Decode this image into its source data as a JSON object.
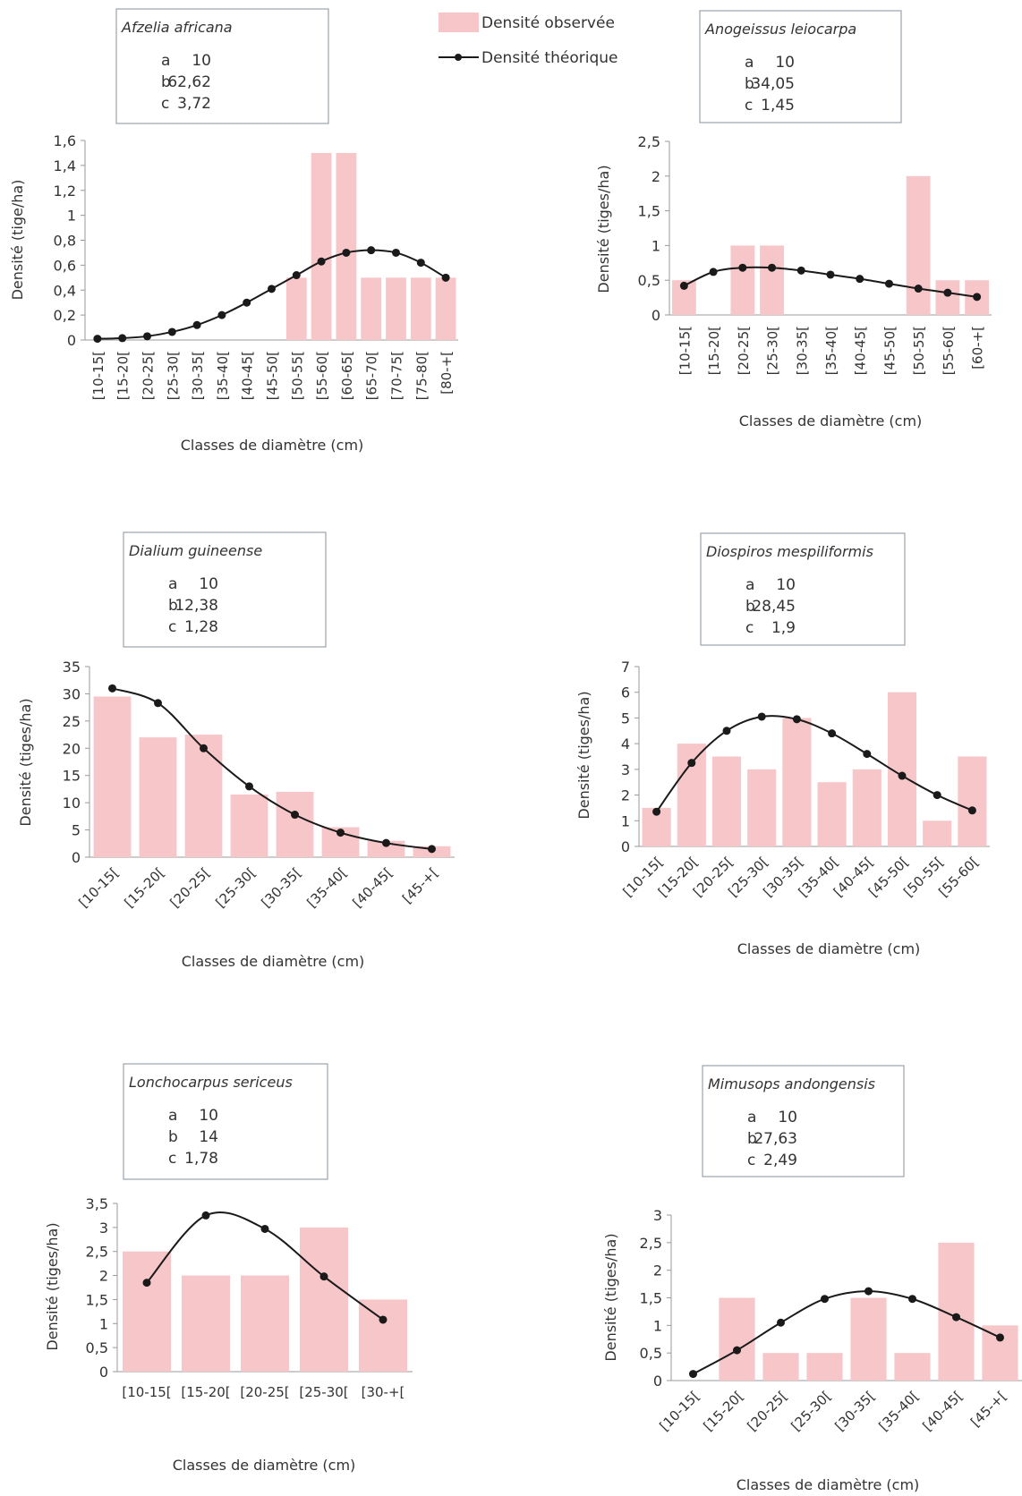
{
  "legend": {
    "observed_label": "Densité observée",
    "theoretical_label": "Densité théorique"
  },
  "colors": {
    "bar": "#f7c6c9",
    "line": "#1a1a1a",
    "axis": "#999999",
    "box_border": "#9aa4ab"
  },
  "chart_data": [
    {
      "type": "bar",
      "title": "Afzelia africana",
      "params": [
        [
          "a",
          "10"
        ],
        [
          "b",
          "62,62"
        ],
        [
          "c",
          "3,72"
        ]
      ],
      "categories": [
        "[10-15[",
        "[15-20[",
        "[20-25[",
        "[25-30[",
        "[30-35[",
        "[35-40[",
        "[40-45[",
        "[45-50[",
        "[50-55[",
        "[55-60[",
        "[60-65[",
        "[65-70[",
        "[70-75[",
        "[75-80[",
        "[80-+["
      ],
      "series": [
        {
          "name": "Densité observée",
          "kind": "bar",
          "values": [
            0,
            0,
            0,
            0,
            0,
            0,
            0,
            0,
            0.5,
            1.5,
            1.5,
            0.5,
            0.5,
            0.5,
            0.5
          ]
        },
        {
          "name": "Densité théorique",
          "kind": "line",
          "values": [
            0.01,
            0.015,
            0.03,
            0.065,
            0.12,
            0.2,
            0.3,
            0.41,
            0.52,
            0.63,
            0.7,
            0.72,
            0.7,
            0.62,
            0.5
          ]
        }
      ],
      "ylim": [
        0,
        1.6
      ],
      "yticks": [
        "0",
        "0,2",
        "0,4",
        "0,6",
        "0,8",
        "1",
        "1,2",
        "1,4",
        "1,6"
      ],
      "ylabel": "Densité (tige/ha)",
      "xlabel": "Classes de diamètre (cm)",
      "label_style": "vertical"
    },
    {
      "type": "bar",
      "title": "Anogeissus leiocarpa",
      "params": [
        [
          "a",
          "10"
        ],
        [
          "b",
          "34,05"
        ],
        [
          "c",
          "1,45"
        ]
      ],
      "categories": [
        "[10-15[",
        "[15-20[",
        "[20-25[",
        "[25-30[",
        "[30-35[",
        "[35-40[",
        "[40-45[",
        "[45-50[",
        "[50-55[",
        "[55-60[",
        "[60-+["
      ],
      "series": [
        {
          "name": "Densité observée",
          "kind": "bar",
          "values": [
            0.5,
            0,
            1,
            1,
            0,
            0,
            0,
            0,
            2,
            0.5,
            0.5
          ]
        },
        {
          "name": "Densité théorique",
          "kind": "line",
          "values": [
            0.42,
            0.62,
            0.68,
            0.68,
            0.64,
            0.58,
            0.52,
            0.45,
            0.38,
            0.32,
            0.26
          ]
        }
      ],
      "ylim": [
        0,
        2.5
      ],
      "yticks": [
        "0",
        "0,5",
        "1",
        "1,5",
        "2",
        "2,5"
      ],
      "ylabel": "Densité (tiges/ha)",
      "xlabel": "Classes de diamètre (cm)",
      "label_style": "vertical"
    },
    {
      "type": "bar",
      "title": "Dialium guineense",
      "params": [
        [
          "a",
          "10"
        ],
        [
          "b",
          "12,38"
        ],
        [
          "c",
          "1,28"
        ]
      ],
      "categories": [
        "[10-15[",
        "[15-20[",
        "[20-25[",
        "[25-30[",
        "[30-35[",
        "[35-40[",
        "[40-45[",
        "[45-+["
      ],
      "series": [
        {
          "name": "Densité observée",
          "kind": "bar",
          "values": [
            29.5,
            22,
            22.5,
            11.5,
            12,
            5.5,
            3,
            2
          ]
        },
        {
          "name": "Densité théorique",
          "kind": "line",
          "values": [
            31,
            28.3,
            20,
            13,
            7.8,
            4.5,
            2.6,
            1.5
          ]
        }
      ],
      "ylim": [
        0,
        35
      ],
      "yticks": [
        "0",
        "5",
        "10",
        "15",
        "20",
        "25",
        "30",
        "35"
      ],
      "ylabel": "Densité (tiges/ha)",
      "xlabel": "Classes de diamètre (cm)",
      "label_style": "diagonal"
    },
    {
      "type": "bar",
      "title": "Diospiros mespiliformis",
      "params": [
        [
          "a",
          "10"
        ],
        [
          "b",
          "28,45"
        ],
        [
          "c",
          "1,9"
        ]
      ],
      "categories": [
        "[10-15[",
        "[15-20[",
        "[20-25[",
        "[25-30[",
        "[30-35[",
        "[35-40[",
        "[40-45[",
        "[45-50[",
        "[50-55[",
        "[55-60["
      ],
      "series": [
        {
          "name": "Densité observée",
          "kind": "bar",
          "values": [
            1.5,
            4,
            3.5,
            3,
            5,
            2.5,
            3,
            6,
            1,
            3.5
          ]
        },
        {
          "name": "Densité théorique",
          "kind": "line",
          "values": [
            1.35,
            3.25,
            4.5,
            5.05,
            4.95,
            4.4,
            3.6,
            2.75,
            2,
            1.4
          ]
        }
      ],
      "ylim": [
        0,
        7
      ],
      "yticks": [
        "0",
        "1",
        "2",
        "3",
        "4",
        "5",
        "6",
        "7"
      ],
      "ylabel": "Densité (tiges/ha)",
      "xlabel": "Classes de diamètre (cm)",
      "label_style": "diagonal"
    },
    {
      "type": "bar",
      "title": "Lonchocarpus sericeus",
      "params": [
        [
          "a",
          "10"
        ],
        [
          "b",
          "14"
        ],
        [
          "c",
          "1,78"
        ]
      ],
      "categories": [
        "[10-15[",
        "[15-20[",
        "[20-25[",
        "[25-30[",
        "[30-+["
      ],
      "series": [
        {
          "name": "Densité observée",
          "kind": "bar",
          "values": [
            2.5,
            2,
            2,
            3,
            1.5
          ]
        },
        {
          "name": "Densité théorique",
          "kind": "line",
          "values": [
            1.85,
            3.25,
            2.97,
            1.98,
            1.08
          ]
        }
      ],
      "ylim": [
        0,
        3.5
      ],
      "yticks": [
        "0",
        "0,5",
        "1",
        "1,5",
        "2",
        "2,5",
        "3",
        "3,5"
      ],
      "ylabel": "Densité (tiges/ha)",
      "xlabel": "Classes de diamètre (cm)",
      "label_style": "horizontal"
    },
    {
      "type": "bar",
      "title": "Mimusops andongensis",
      "params": [
        [
          "a",
          "10"
        ],
        [
          "b",
          "27,63"
        ],
        [
          "c",
          "2,49"
        ]
      ],
      "categories": [
        "[10-15[",
        "[15-20[",
        "[20-25[",
        "[25-30[",
        "[30-35[",
        "[35-40[",
        "[40-45[",
        "[45-+["
      ],
      "series": [
        {
          "name": "Densité observée",
          "kind": "bar",
          "values": [
            0,
            1.5,
            0.5,
            0.5,
            1.5,
            0.5,
            2.5,
            1
          ]
        },
        {
          "name": "Densité théorique",
          "kind": "line",
          "values": [
            0.12,
            0.55,
            1.05,
            1.48,
            1.62,
            1.48,
            1.15,
            0.78
          ]
        }
      ],
      "ylim": [
        0,
        3
      ],
      "yticks": [
        "0",
        "0,5",
        "1",
        "1,5",
        "2",
        "2,5",
        "3"
      ],
      "ylabel": "Densité (tiges/ha)",
      "xlabel": "Classes de diamètre (cm)",
      "label_style": "diagonal"
    }
  ]
}
